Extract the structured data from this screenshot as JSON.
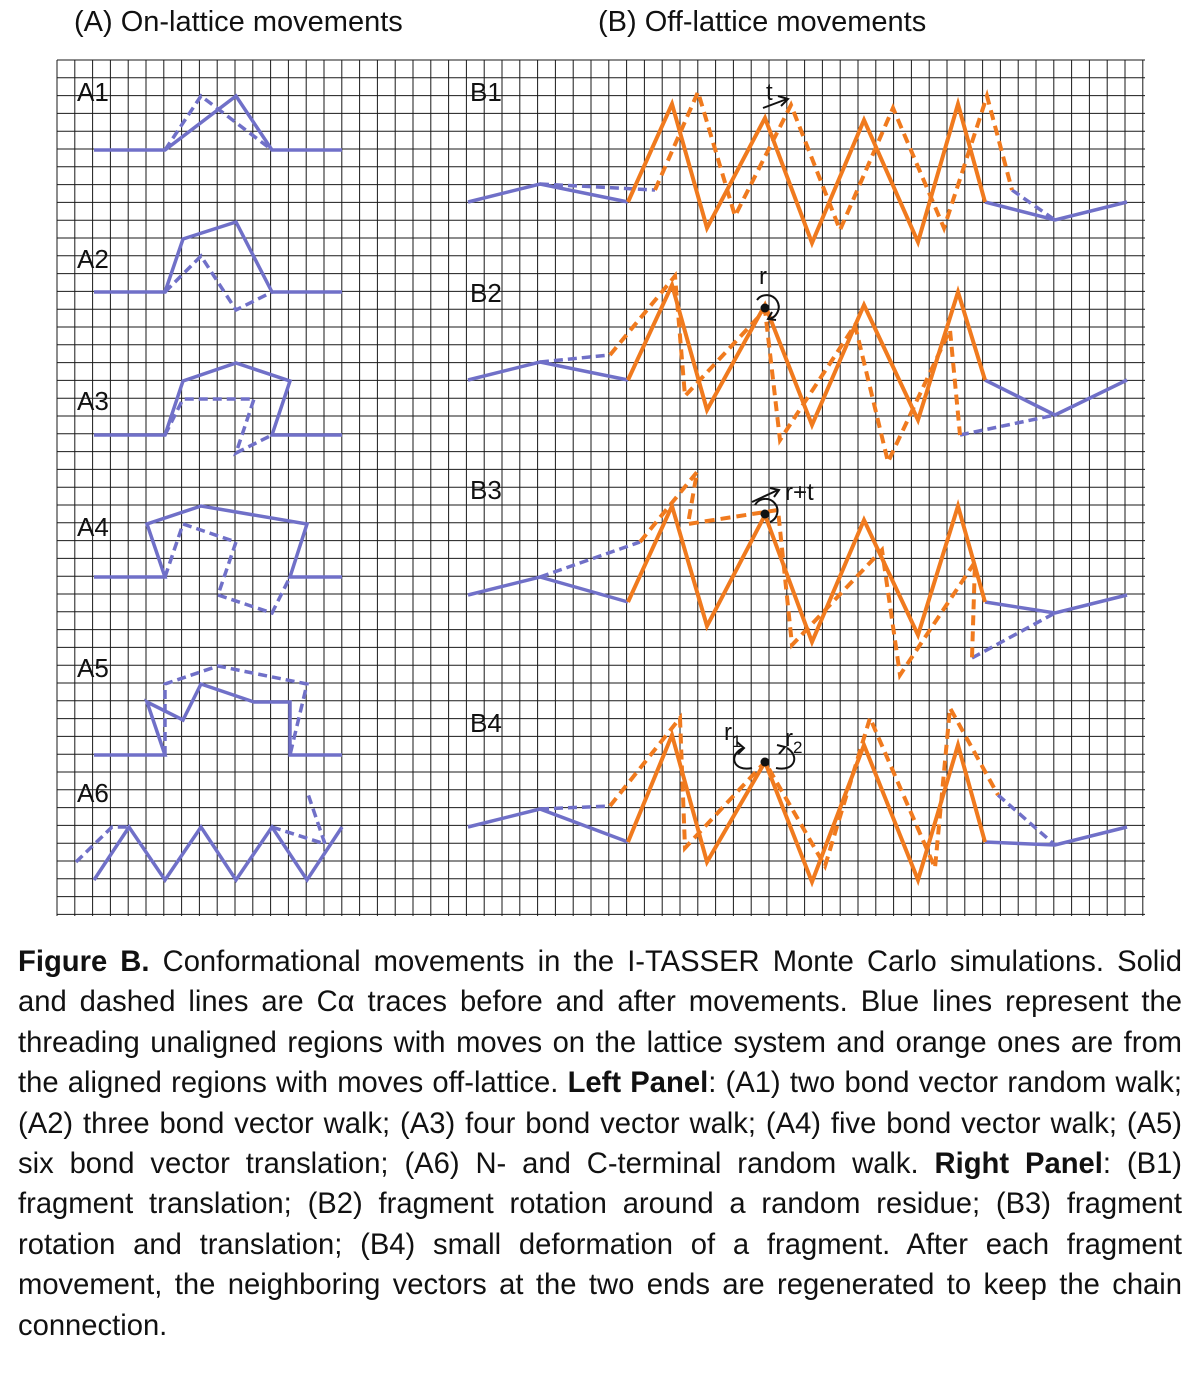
{
  "headings": {
    "left": "(A) On-lattice movements",
    "right": "(B) Off-lattice movements"
  },
  "colors": {
    "grid": "#1a1a1a",
    "blue": "#7070c8",
    "orange": "#f07a1e",
    "text": "#111111"
  },
  "diagram_labels": {
    "a1": "A1",
    "a2": "A2",
    "a3": "A3",
    "a4": "A4",
    "a5": "A5",
    "a6": "A6",
    "b1": "B1",
    "b2": "B2",
    "b3": "B3",
    "b4": "B4",
    "t": "t",
    "r": "r",
    "rt": "r+t",
    "r1": "r",
    "r1_sub": "1",
    "r2": "r",
    "r2_sub": "2"
  },
  "caption": {
    "figure_label": "Figure B.",
    "text1": " Conformational movements in the I-TASSER Monte Carlo simula­tions. Solid and dashed lines are Cα traces before and after movements. Blue lines represent the threading unaligned regions with moves on the lattice system and orange ones are from the aligned regions with moves off-lattice. ",
    "left_label": "Left Panel",
    "text2": ": (A1) two bond vector random walk; (A2) three bond vector walk; (A3) four bond vector walk; (A4) five bond vector walk; (A5) six bond vector translation; (A6) N- and C-terminal random walk. ",
    "right_label": "Right Panel",
    "text3": ": (B1) fragment translation; (B2) fragment rotation around a random residue; (B3) fragment rotation and translation; (B4) small deformation of a fragment. After each fragment movement, the neighboring vectors at the two ends are regenerated to keep the chain connection."
  }
}
